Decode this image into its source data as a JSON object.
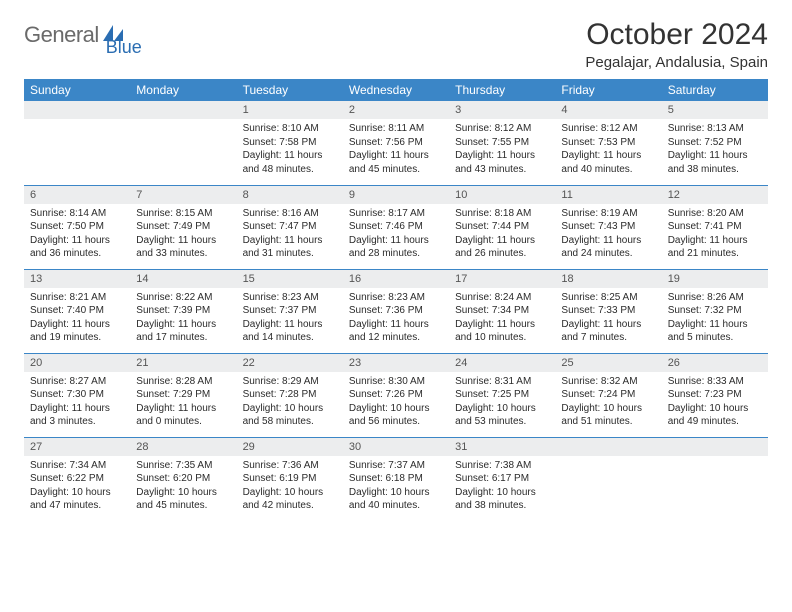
{
  "brand": {
    "general": "General",
    "blue": "Blue"
  },
  "title": "October 2024",
  "location": "Pegalajar, Andalusia, Spain",
  "colors": {
    "header_bg": "#3b86c7",
    "header_text": "#ffffff",
    "daynum_bg": "#ecedee",
    "border": "#3b86c7",
    "logo_gray": "#6a6a6a",
    "logo_blue": "#2a6db2"
  },
  "day_headers": [
    "Sunday",
    "Monday",
    "Tuesday",
    "Wednesday",
    "Thursday",
    "Friday",
    "Saturday"
  ],
  "weeks": [
    [
      null,
      null,
      {
        "n": "1",
        "sr": "Sunrise: 8:10 AM",
        "ss": "Sunset: 7:58 PM",
        "dl": "Daylight: 11 hours and 48 minutes."
      },
      {
        "n": "2",
        "sr": "Sunrise: 8:11 AM",
        "ss": "Sunset: 7:56 PM",
        "dl": "Daylight: 11 hours and 45 minutes."
      },
      {
        "n": "3",
        "sr": "Sunrise: 8:12 AM",
        "ss": "Sunset: 7:55 PM",
        "dl": "Daylight: 11 hours and 43 minutes."
      },
      {
        "n": "4",
        "sr": "Sunrise: 8:12 AM",
        "ss": "Sunset: 7:53 PM",
        "dl": "Daylight: 11 hours and 40 minutes."
      },
      {
        "n": "5",
        "sr": "Sunrise: 8:13 AM",
        "ss": "Sunset: 7:52 PM",
        "dl": "Daylight: 11 hours and 38 minutes."
      }
    ],
    [
      {
        "n": "6",
        "sr": "Sunrise: 8:14 AM",
        "ss": "Sunset: 7:50 PM",
        "dl": "Daylight: 11 hours and 36 minutes."
      },
      {
        "n": "7",
        "sr": "Sunrise: 8:15 AM",
        "ss": "Sunset: 7:49 PM",
        "dl": "Daylight: 11 hours and 33 minutes."
      },
      {
        "n": "8",
        "sr": "Sunrise: 8:16 AM",
        "ss": "Sunset: 7:47 PM",
        "dl": "Daylight: 11 hours and 31 minutes."
      },
      {
        "n": "9",
        "sr": "Sunrise: 8:17 AM",
        "ss": "Sunset: 7:46 PM",
        "dl": "Daylight: 11 hours and 28 minutes."
      },
      {
        "n": "10",
        "sr": "Sunrise: 8:18 AM",
        "ss": "Sunset: 7:44 PM",
        "dl": "Daylight: 11 hours and 26 minutes."
      },
      {
        "n": "11",
        "sr": "Sunrise: 8:19 AM",
        "ss": "Sunset: 7:43 PM",
        "dl": "Daylight: 11 hours and 24 minutes."
      },
      {
        "n": "12",
        "sr": "Sunrise: 8:20 AM",
        "ss": "Sunset: 7:41 PM",
        "dl": "Daylight: 11 hours and 21 minutes."
      }
    ],
    [
      {
        "n": "13",
        "sr": "Sunrise: 8:21 AM",
        "ss": "Sunset: 7:40 PM",
        "dl": "Daylight: 11 hours and 19 minutes."
      },
      {
        "n": "14",
        "sr": "Sunrise: 8:22 AM",
        "ss": "Sunset: 7:39 PM",
        "dl": "Daylight: 11 hours and 17 minutes."
      },
      {
        "n": "15",
        "sr": "Sunrise: 8:23 AM",
        "ss": "Sunset: 7:37 PM",
        "dl": "Daylight: 11 hours and 14 minutes."
      },
      {
        "n": "16",
        "sr": "Sunrise: 8:23 AM",
        "ss": "Sunset: 7:36 PM",
        "dl": "Daylight: 11 hours and 12 minutes."
      },
      {
        "n": "17",
        "sr": "Sunrise: 8:24 AM",
        "ss": "Sunset: 7:34 PM",
        "dl": "Daylight: 11 hours and 10 minutes."
      },
      {
        "n": "18",
        "sr": "Sunrise: 8:25 AM",
        "ss": "Sunset: 7:33 PM",
        "dl": "Daylight: 11 hours and 7 minutes."
      },
      {
        "n": "19",
        "sr": "Sunrise: 8:26 AM",
        "ss": "Sunset: 7:32 PM",
        "dl": "Daylight: 11 hours and 5 minutes."
      }
    ],
    [
      {
        "n": "20",
        "sr": "Sunrise: 8:27 AM",
        "ss": "Sunset: 7:30 PM",
        "dl": "Daylight: 11 hours and 3 minutes."
      },
      {
        "n": "21",
        "sr": "Sunrise: 8:28 AM",
        "ss": "Sunset: 7:29 PM",
        "dl": "Daylight: 11 hours and 0 minutes."
      },
      {
        "n": "22",
        "sr": "Sunrise: 8:29 AM",
        "ss": "Sunset: 7:28 PM",
        "dl": "Daylight: 10 hours and 58 minutes."
      },
      {
        "n": "23",
        "sr": "Sunrise: 8:30 AM",
        "ss": "Sunset: 7:26 PM",
        "dl": "Daylight: 10 hours and 56 minutes."
      },
      {
        "n": "24",
        "sr": "Sunrise: 8:31 AM",
        "ss": "Sunset: 7:25 PM",
        "dl": "Daylight: 10 hours and 53 minutes."
      },
      {
        "n": "25",
        "sr": "Sunrise: 8:32 AM",
        "ss": "Sunset: 7:24 PM",
        "dl": "Daylight: 10 hours and 51 minutes."
      },
      {
        "n": "26",
        "sr": "Sunrise: 8:33 AM",
        "ss": "Sunset: 7:23 PM",
        "dl": "Daylight: 10 hours and 49 minutes."
      }
    ],
    [
      {
        "n": "27",
        "sr": "Sunrise: 7:34 AM",
        "ss": "Sunset: 6:22 PM",
        "dl": "Daylight: 10 hours and 47 minutes."
      },
      {
        "n": "28",
        "sr": "Sunrise: 7:35 AM",
        "ss": "Sunset: 6:20 PM",
        "dl": "Daylight: 10 hours and 45 minutes."
      },
      {
        "n": "29",
        "sr": "Sunrise: 7:36 AM",
        "ss": "Sunset: 6:19 PM",
        "dl": "Daylight: 10 hours and 42 minutes."
      },
      {
        "n": "30",
        "sr": "Sunrise: 7:37 AM",
        "ss": "Sunset: 6:18 PM",
        "dl": "Daylight: 10 hours and 40 minutes."
      },
      {
        "n": "31",
        "sr": "Sunrise: 7:38 AM",
        "ss": "Sunset: 6:17 PM",
        "dl": "Daylight: 10 hours and 38 minutes."
      },
      null,
      null
    ]
  ]
}
